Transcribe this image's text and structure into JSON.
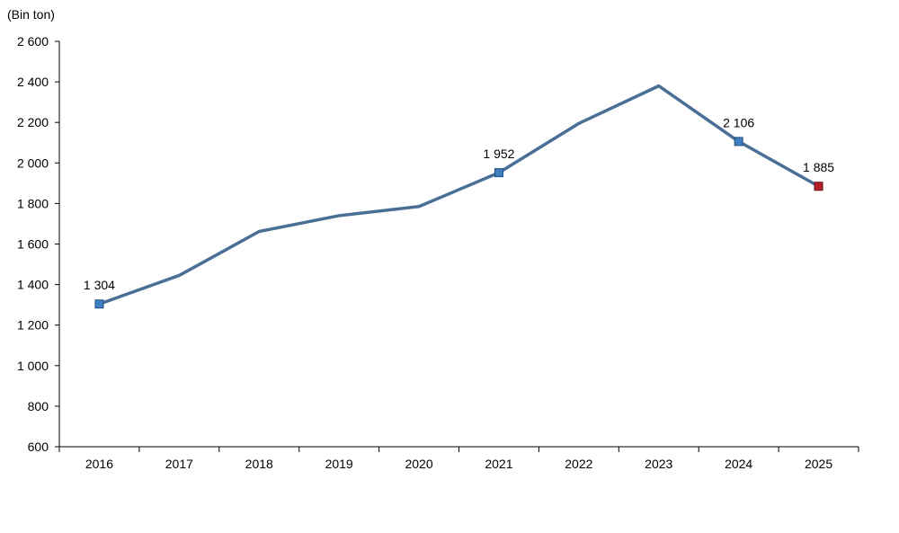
{
  "chart_data": {
    "type": "line",
    "ylabel": "(Bin ton)",
    "categories": [
      "2016",
      "2017",
      "2018",
      "2019",
      "2020",
      "2021",
      "2022",
      "2023",
      "2024",
      "2025"
    ],
    "series": [
      {
        "values": [
          1304,
          1445,
          1662,
          1740,
          1785,
          1952,
          2195,
          2380,
          2106,
          1885
        ]
      }
    ],
    "ylim": [
      600,
      2600
    ],
    "yticks": [
      600,
      800,
      1000,
      1200,
      1400,
      1600,
      1800,
      2000,
      2200,
      2400,
      2600
    ],
    "ytick_labels": [
      "600",
      "800",
      "1 000",
      "1 200",
      "1 400",
      "1 600",
      "1 800",
      "2 000",
      "2 200",
      "2 400",
      "2 600"
    ],
    "data_labels": [
      {
        "index": 0,
        "text": "1 304"
      },
      {
        "index": 5,
        "text": "1 952"
      },
      {
        "index": 8,
        "text": "2 106"
      },
      {
        "index": 9,
        "text": "1 885"
      }
    ],
    "grid": false,
    "legend": "none",
    "colors": {
      "line": "#4a6f96",
      "marker": "#3d7fc0",
      "last_marker": "#b3202a"
    }
  }
}
